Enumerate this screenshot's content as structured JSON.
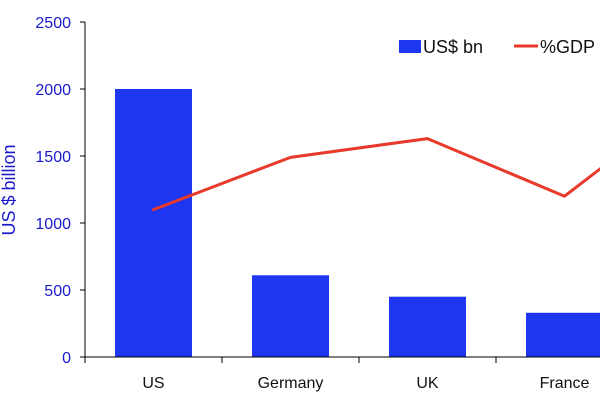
{
  "chart_data": {
    "type": "bar",
    "categories": [
      "US",
      "Germany",
      "UK",
      "France"
    ],
    "series": [
      {
        "name": "US$ bn",
        "type": "bar",
        "axis": "left",
        "values": [
          2000,
          610,
          450,
          330
        ]
      },
      {
        "name": "%GDP",
        "type": "line",
        "axis": "left",
        "values": [
          1100,
          1490,
          1630,
          1200
        ]
      }
    ],
    "line_continues_right": true,
    "ylabel": "US $ billion",
    "ylim": [
      0,
      2500
    ],
    "yticks": [
      0,
      500,
      1000,
      1500,
      2000,
      2500
    ],
    "grid": false,
    "legend_position": "top-right",
    "colors": {
      "bar": "#1f36f0",
      "line": "#e8392a",
      "axis_text": "#1a1acc"
    }
  }
}
